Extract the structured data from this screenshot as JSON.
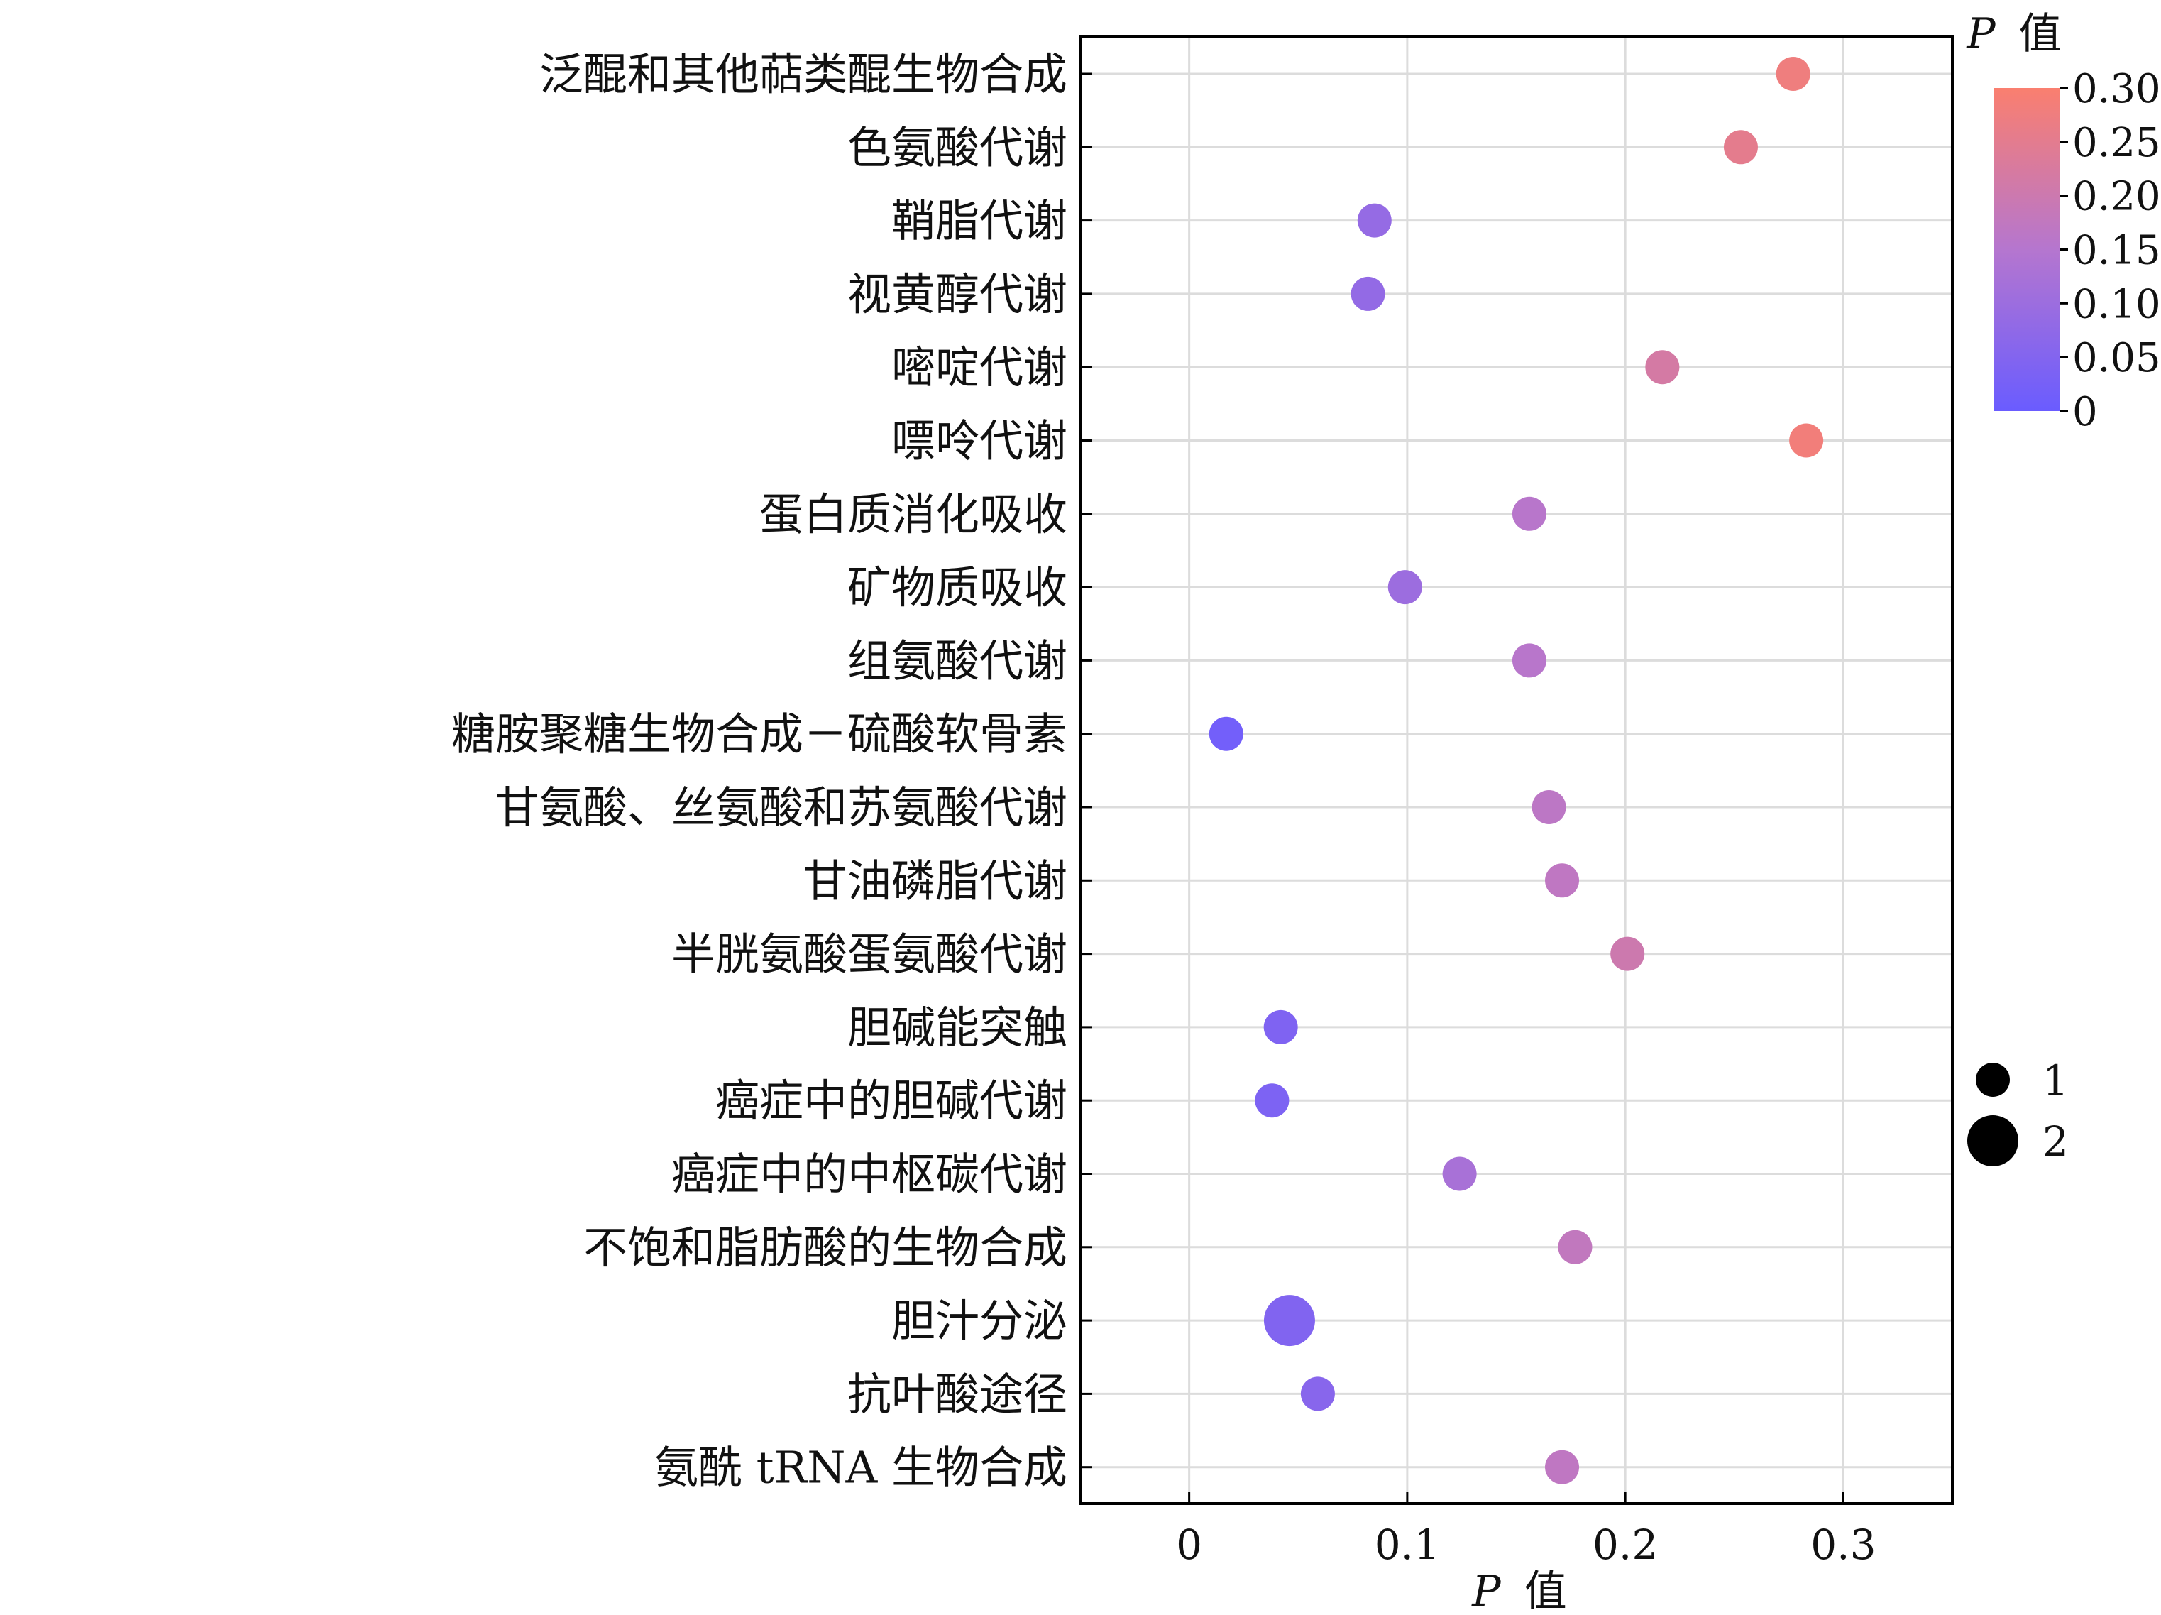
{
  "chart_data": {
    "type": "scatter",
    "title": "",
    "xlabel_italic": "P",
    "xlabel_text": "值",
    "xlim": [
      -0.05,
      0.35
    ],
    "xticks": [
      "0",
      "0.1",
      "0.2",
      "0.3"
    ],
    "xtick_values": [
      0,
      0.1,
      0.2,
      0.3
    ],
    "grid": true,
    "categories": [
      "泛醌和其他萜类醌生物合成",
      "色氨酸代谢",
      "鞘脂代谢",
      "视黄醇代谢",
      "嘧啶代谢",
      "嘌呤代谢",
      "蛋白质消化吸收",
      "矿物质吸收",
      "组氨酸代谢",
      "糖胺聚糖生物合成－硫酸软骨素",
      "甘氨酸、丝氨酸和苏氨酸代谢",
      "甘油磷脂代谢",
      "半胱氨酸蛋氨酸代谢",
      "胆碱能突触",
      "癌症中的胆碱代谢",
      "癌症中的中枢碳代谢",
      "不饱和脂肪酸的生物合成",
      "胆汁分泌",
      "抗叶酸途径",
      "氨酰 tRNA 生物合成"
    ],
    "x": [
      0.277,
      0.253,
      0.085,
      0.082,
      0.217,
      0.283,
      0.156,
      0.099,
      0.156,
      0.017,
      0.165,
      0.171,
      0.201,
      0.042,
      0.038,
      0.124,
      0.177,
      0.046,
      0.059,
      0.171
    ],
    "size": [
      1,
      1,
      1,
      1,
      1,
      1,
      1,
      1,
      1,
      1,
      1,
      1,
      1,
      1,
      1,
      1,
      1,
      2,
      1,
      1
    ],
    "colorbar": {
      "title_italic": "P",
      "title_text": "值",
      "range": [
        0,
        0.3
      ],
      "ticks": [
        "0",
        "0.05",
        "0.10",
        "0.15",
        "0.20",
        "0.25",
        "0.30"
      ],
      "tick_values": [
        0,
        0.05,
        0.1,
        0.15,
        0.2,
        0.25,
        0.3
      ],
      "color_low": "#6a5cff",
      "color_mid": "#b576cf",
      "color_high": "#fa7f6f"
    },
    "size_legend": {
      "labels": [
        "1",
        "2"
      ],
      "values": [
        1,
        2
      ],
      "marker_color": "#000000"
    }
  }
}
